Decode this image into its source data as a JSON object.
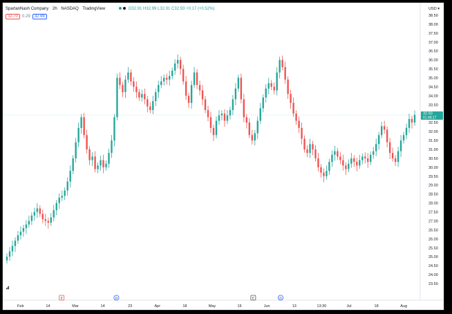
{
  "header": {
    "symbol": "SpartanNash Company",
    "interval": "2h",
    "exchange": "NASDAQ",
    "source": "TradingView",
    "ohlc_text": "O32.91 H32.99 L32.91 C32.93 +0.17 (+0.52%)",
    "currency": "USD",
    "bid": "32.70",
    "spread": "0.29",
    "ask": "32.99"
  },
  "colors": {
    "up": "#26a69a",
    "down": "#ef5350",
    "axis_text": "#131722"
  },
  "chart_data": {
    "type": "candlestick",
    "title": "",
    "ylim": [
      23.5,
      38.5
    ],
    "y_ticks": [
      "38.50",
      "38.00",
      "37.50",
      "37.00",
      "36.50",
      "36.00",
      "35.50",
      "35.00",
      "34.50",
      "34.00",
      "33.50",
      "33.00",
      "32.50",
      "32.00",
      "31.50",
      "31.00",
      "30.50",
      "30.00",
      "29.50",
      "29.00",
      "28.50",
      "28.00",
      "27.50",
      "27.00",
      "26.50",
      "26.00",
      "25.50",
      "25.00",
      "24.50",
      "24.00",
      "23.50"
    ],
    "x_ticks": [
      "Feb",
      "14",
      "Mar",
      "14",
      "23",
      "Apr",
      "18",
      "May",
      "16",
      "Jun",
      "13",
      "13:30",
      "Jul",
      "18",
      "Aug"
    ],
    "events": [
      {
        "label": "E",
        "after_tick": 1
      },
      {
        "label": "D",
        "after_tick": 3
      },
      {
        "label": "E",
        "after_tick": 8
      },
      {
        "label": "D",
        "after_tick": 9
      }
    ],
    "last_price": "32.93",
    "countdown": "01:48:17",
    "series": [
      {
        "close": [
          25.0,
          25.3,
          25.6,
          25.9,
          26.2,
          26.4,
          26.6,
          26.8,
          27.0,
          27.3,
          27.5,
          27.7,
          27.4,
          27.1,
          27.0,
          26.9,
          27.2,
          27.6,
          28.0,
          28.3,
          28.4,
          28.7,
          29.2,
          29.8,
          30.5,
          31.4,
          32.2,
          32.8,
          31.8,
          31.0,
          30.4,
          30.6,
          29.9,
          30.1,
          30.4,
          30.0,
          30.2,
          30.8,
          31.5,
          32.8,
          35.0,
          34.6,
          34.2,
          34.9,
          35.3,
          34.8,
          34.5,
          34.2,
          33.9,
          34.1,
          33.8,
          33.4,
          33.2,
          33.7,
          34.2,
          34.6,
          34.8,
          35.0,
          34.9,
          35.1,
          35.4,
          35.8,
          36.0,
          35.5,
          34.8,
          34.0,
          33.6,
          34.6,
          35.3,
          34.6,
          34.3,
          33.8,
          33.2,
          32.8,
          32.2,
          31.8,
          32.6,
          32.9,
          33.0,
          32.6,
          32.9,
          33.2,
          33.8,
          34.4,
          35.0,
          33.8,
          32.8,
          32.5,
          31.8,
          31.5,
          31.9,
          32.6,
          33.3,
          33.9,
          34.4,
          34.7,
          34.5,
          34.3,
          35.3,
          36.0,
          35.6,
          34.9,
          34.1,
          33.6,
          33.0,
          32.6,
          32.2,
          31.6,
          31.0,
          30.8,
          31.3,
          31.0,
          30.5,
          30.0,
          29.7,
          29.5,
          29.8,
          30.3,
          30.7,
          30.9,
          30.6,
          30.4,
          30.1,
          29.9,
          30.2,
          30.5,
          30.3,
          30.1,
          30.4,
          30.6,
          30.5,
          30.3,
          30.7,
          30.9,
          31.3,
          31.8,
          32.3,
          32.1,
          31.4,
          30.8,
          30.5,
          30.3,
          30.9,
          31.5,
          31.8,
          32.2,
          32.7,
          32.5,
          32.93
        ]
      }
    ]
  }
}
